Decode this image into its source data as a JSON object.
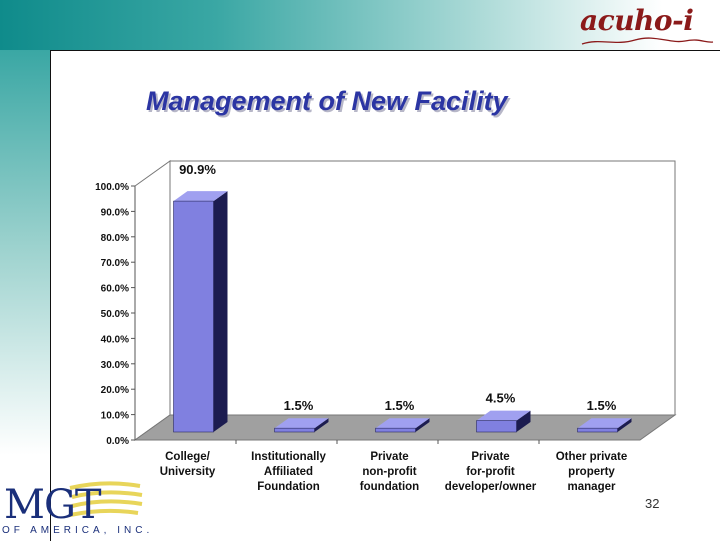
{
  "slide": {
    "title": "Management of New Facility",
    "page_number": "32",
    "logo_top": "acuho-i",
    "logo_bottom": "MGT",
    "logo_bottom_sub": "OF AMERICA, INC.",
    "colors": {
      "bar_front": "#8080e0",
      "bar_side": "#1c1c50",
      "bar_top": "#a0a0f0",
      "floor": "#a0a0a0",
      "title": "#2b35a3",
      "teal_band": "#0f8b8b"
    }
  },
  "chart_data": {
    "type": "bar",
    "title": "Management of New Facility",
    "categories": [
      [
        "College/",
        "University"
      ],
      [
        "Institutionally",
        "Affiliated",
        "Foundation"
      ],
      [
        "Private",
        "non-profit",
        "foundation"
      ],
      [
        "Private",
        "for-profit",
        "developer/owner"
      ],
      [
        "Other private",
        "property",
        "manager"
      ]
    ],
    "values": [
      90.9,
      1.5,
      1.5,
      4.5,
      1.5
    ],
    "data_labels": [
      "90.9%",
      "1.5%",
      "1.5%",
      "4.5%",
      "1.5%"
    ],
    "y_ticks": [
      "0.0%",
      "10.0%",
      "20.0%",
      "30.0%",
      "40.0%",
      "50.0%",
      "60.0%",
      "70.0%",
      "80.0%",
      "90.0%",
      "100.0%"
    ],
    "ylim": [
      0,
      100
    ],
    "style": "3d",
    "legend": "none"
  }
}
